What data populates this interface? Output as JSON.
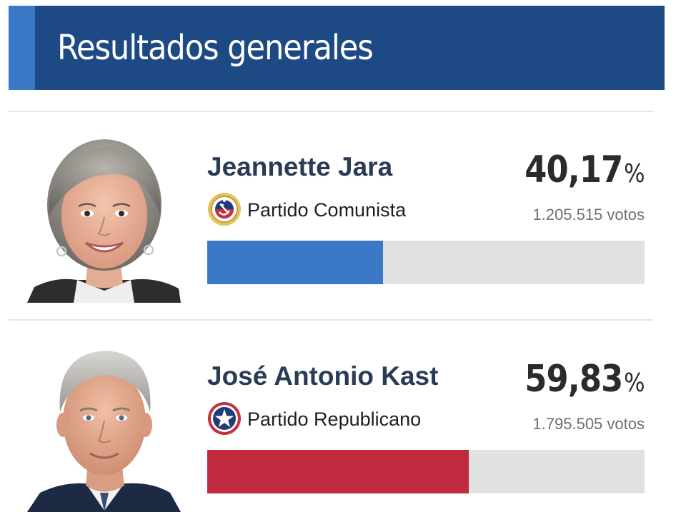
{
  "header": {
    "title": "Resultados generales",
    "color": "#1d4984",
    "accent_color": "#3c78c8"
  },
  "candidates": [
    {
      "name": "Jeannette Jara",
      "party": "Partido Comunista",
      "party_icon": "communist-party-logo-icon",
      "percent": "40,17",
      "percent_sign": "%",
      "votes": "1.205.515 votos",
      "share": 0.4017,
      "bar_color": "#3b78c6",
      "photo": "candidate-portrait"
    },
    {
      "name": "José Antonio Kast",
      "party": "Partido Republicano",
      "party_icon": "republican-party-star-logo-icon",
      "percent": "59,83",
      "percent_sign": "%",
      "votes": "1.795.505 votos",
      "share": 0.5983,
      "bar_color": "#c02a3f",
      "photo": "candidate-portrait"
    }
  ],
  "bar_track_color": "#e1e1e1"
}
